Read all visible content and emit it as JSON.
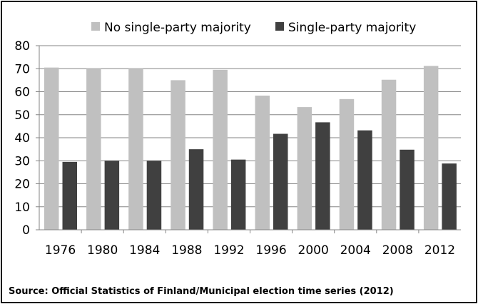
{
  "chart_data": {
    "type": "bar",
    "categories": [
      "1976",
      "1980",
      "1984",
      "1988",
      "1992",
      "1996",
      "2000",
      "2004",
      "2008",
      "2012"
    ],
    "series": [
      {
        "name": "No single-party majority",
        "color": "#c0c0c0",
        "values": [
          70.5,
          70,
          70,
          65,
          69.5,
          58.3,
          53.3,
          56.8,
          65.2,
          71.2
        ]
      },
      {
        "name": "Single-party majority",
        "color": "#404040",
        "values": [
          29.5,
          30,
          30,
          35,
          30.5,
          41.7,
          46.7,
          43.2,
          34.8,
          28.8
        ]
      }
    ],
    "ylim": [
      0,
      80
    ],
    "yticks": [
      "0",
      "10",
      "20",
      "30",
      "40",
      "50",
      "60",
      "70",
      "80"
    ],
    "grid": true,
    "legend_position": "top"
  },
  "source_note": "Source: Official Statistics of Finland/Municipal election time series (2012)"
}
